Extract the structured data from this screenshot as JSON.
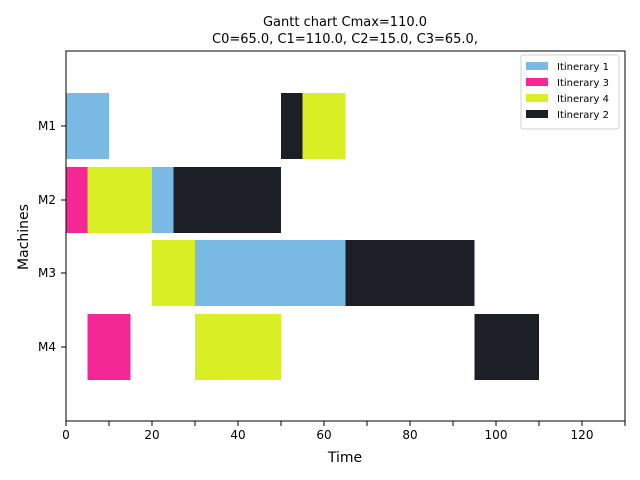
{
  "chart_data": {
    "type": "gantt",
    "title": "Gantt chart  Cmax=110.0",
    "subtitle": "C0=65.0, C1=110.0, C2=15.0, C3=65.0,",
    "xlabel": "Time",
    "ylabel": "Machines",
    "xlim": [
      0,
      130
    ],
    "xticks": [
      0,
      20,
      40,
      60,
      80,
      100,
      120
    ],
    "machines": [
      "M1",
      "M2",
      "M3",
      "M4"
    ],
    "legend_position": "upper right",
    "series": [
      {
        "name": "Itinerary 1",
        "color": "#7ab9e4"
      },
      {
        "name": "Itinerary 3",
        "color": "#f42894"
      },
      {
        "name": "Itinerary 4",
        "color": "#daee25"
      },
      {
        "name": "Itinerary 2",
        "color": "#1c1f26"
      }
    ],
    "tasks": [
      {
        "machine": "M1",
        "series": "Itinerary 1",
        "start": 0,
        "end": 10
      },
      {
        "machine": "M1",
        "series": "Itinerary 2",
        "start": 50,
        "end": 55
      },
      {
        "machine": "M1",
        "series": "Itinerary 4",
        "start": 55,
        "end": 65
      },
      {
        "machine": "M2",
        "series": "Itinerary 3",
        "start": 0,
        "end": 5
      },
      {
        "machine": "M2",
        "series": "Itinerary 4",
        "start": 5,
        "end": 20
      },
      {
        "machine": "M2",
        "series": "Itinerary 1",
        "start": 20,
        "end": 25
      },
      {
        "machine": "M2",
        "series": "Itinerary 2",
        "start": 25,
        "end": 50
      },
      {
        "machine": "M3",
        "series": "Itinerary 4",
        "start": 20,
        "end": 30
      },
      {
        "machine": "M3",
        "series": "Itinerary 1",
        "start": 30,
        "end": 65
      },
      {
        "machine": "M3",
        "series": "Itinerary 2",
        "start": 65,
        "end": 95
      },
      {
        "machine": "M4",
        "series": "Itinerary 3",
        "start": 5,
        "end": 15
      },
      {
        "machine": "M4",
        "series": "Itinerary 4",
        "start": 30,
        "end": 50
      },
      {
        "machine": "M4",
        "series": "Itinerary 2",
        "start": 95,
        "end": 110
      }
    ]
  }
}
